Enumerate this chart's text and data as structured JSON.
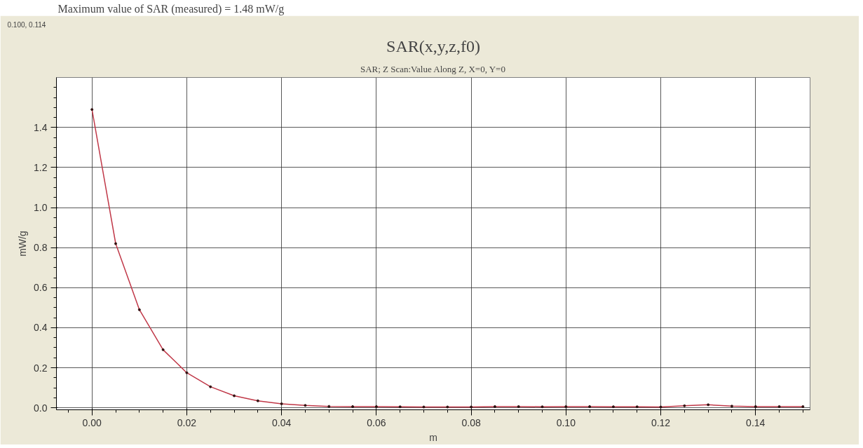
{
  "chart_data": {
    "type": "line",
    "title": "SAR(x,y,z,f0)",
    "subtitle": "SAR; Z Scan:Value Along Z, X=0, Y=0",
    "xlabel": "m",
    "ylabel": "mW/g",
    "annotations": [
      "Maximum value of SAR (measured) = 1.48 mW/g",
      "0.100, 0.114"
    ],
    "x": [
      0,
      0.005,
      0.01,
      0.015,
      0.02,
      0.025,
      0.03,
      0.035,
      0.04,
      0.045,
      0.05,
      0.055,
      0.06,
      0.065,
      0.07,
      0.075,
      0.08,
      0.085,
      0.09,
      0.095,
      0.1,
      0.105,
      0.11,
      0.115,
      0.12,
      0.125,
      0.13,
      0.135,
      0.14,
      0.145,
      0.15
    ],
    "series": [
      {
        "color": "#c03848",
        "values": [
          1.49,
          0.82,
          0.49,
          0.29,
          0.175,
          0.105,
          0.06,
          0.035,
          0.02,
          0.012,
          0.007,
          0.006,
          0.006,
          0.005,
          0.004,
          0.004,
          0.004,
          0.006,
          0.006,
          0.005,
          0.006,
          0.006,
          0.005,
          0.005,
          0.004,
          0.01,
          0.015,
          0.008,
          0.006,
          0.006,
          0.006
        ]
      }
    ],
    "xlim": [
      -0.0075,
      0.1515
    ],
    "ylim": [
      -0.01,
      1.65
    ],
    "xticks": [
      {
        "value": 0,
        "label": "0.00"
      },
      {
        "value": 0.02,
        "label": "0.02"
      },
      {
        "value": 0.04,
        "label": "0.04"
      },
      {
        "value": 0.06,
        "label": "0.06"
      },
      {
        "value": 0.08,
        "label": "0.08"
      },
      {
        "value": 0.1,
        "label": "0.10"
      },
      {
        "value": 0.12,
        "label": "0.12"
      },
      {
        "value": 0.14,
        "label": "0.14"
      }
    ],
    "yticks": [
      {
        "value": 0,
        "label": "0.0"
      },
      {
        "value": 0.2,
        "label": "0.2"
      },
      {
        "value": 0.4,
        "label": "0.4"
      },
      {
        "value": 0.6,
        "label": "0.6"
      },
      {
        "value": 0.8,
        "label": "0.8"
      },
      {
        "value": 1.0,
        "label": "1.0"
      },
      {
        "value": 1.2,
        "label": "1.2"
      },
      {
        "value": 1.4,
        "label": "1.4"
      }
    ],
    "grid": true,
    "marker": "circle",
    "line_style": "solid"
  }
}
